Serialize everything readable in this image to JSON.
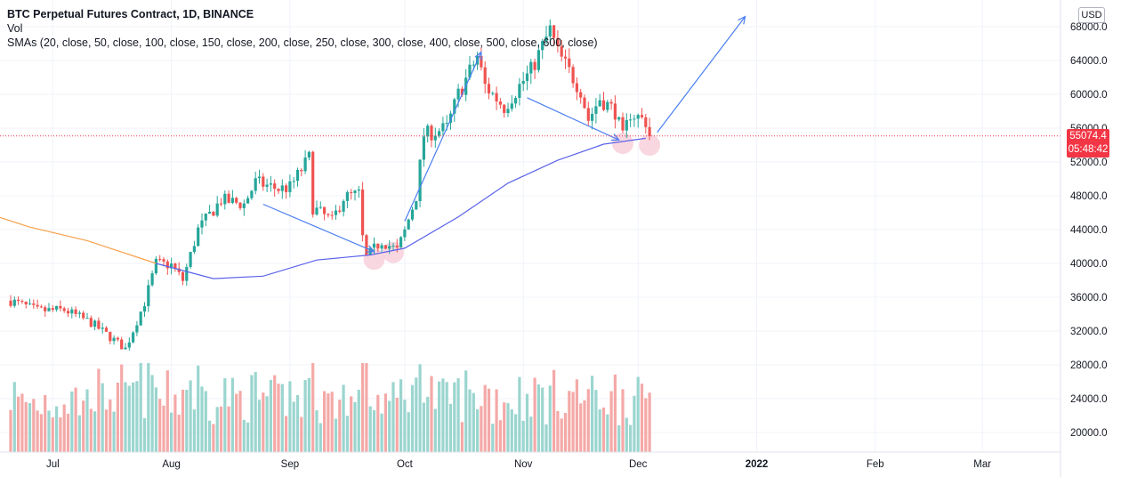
{
  "legend": {
    "title": "BTC Perpetual Futures Contract, 1D, BINANCE",
    "vol": "Vol",
    "smas": "SMAs (20, close, 50, close, 100, close, 150, close, 200, close, 250, close, 300, close, 400, close, 500, close, 600, close)"
  },
  "currency_label": "USD",
  "last_price": {
    "value": "55074.4",
    "countdown": "05:48:42",
    "price": 55074.4,
    "color": "#f23645"
  },
  "colors": {
    "up": "#26a69a",
    "down": "#ef5350",
    "vol_up": "#9bd5cf",
    "vol_down": "#f4a9a7",
    "sma_blue": "#5b63ea",
    "sma_orange": "#f7a04b",
    "arrow": "#4a7ef0",
    "grid": "#f0f3fa",
    "highlight": "#f7c9d5"
  },
  "chart_data": {
    "type": "candlestick",
    "x_axis_labels": [
      "Jul",
      "Aug",
      "Sep",
      "Oct",
      "Nov",
      "Dec",
      "2022",
      "Feb",
      "Mar"
    ],
    "y_axis_labels": [
      "68000.0",
      "64000.0",
      "60000.0",
      "56000.0",
      "52000.0",
      "48000.0",
      "44000.0",
      "40000.0",
      "36000.0",
      "32000.0",
      "28000.0",
      "24000.0",
      "20000.0"
    ],
    "ylim": [
      19000,
      69500
    ],
    "grid": true,
    "close_anchors": [
      [
        "2021-06-20",
        35600
      ],
      [
        "2021-06-27",
        34400
      ],
      [
        "2021-07-04",
        34500
      ],
      [
        "2021-07-11",
        33000
      ],
      [
        "2021-07-20",
        29900
      ],
      [
        "2021-07-25",
        35400
      ],
      [
        "2021-07-28",
        40000
      ],
      [
        "2021-08-01",
        39800
      ],
      [
        "2021-08-04",
        38000
      ],
      [
        "2021-08-08",
        44000
      ],
      [
        "2021-08-14",
        47500
      ],
      [
        "2021-08-20",
        47000
      ],
      [
        "2021-08-23",
        49600
      ],
      [
        "2021-08-29",
        48800
      ],
      [
        "2021-09-01",
        49000
      ],
      [
        "2021-09-06",
        52500
      ],
      [
        "2021-09-07",
        46600
      ],
      [
        "2021-09-12",
        45000
      ],
      [
        "2021-09-15",
        47800
      ],
      [
        "2021-09-19",
        48200
      ],
      [
        "2021-09-20",
        43000
      ],
      [
        "2021-09-21",
        40700
      ],
      [
        "2021-09-25",
        42700
      ],
      [
        "2021-09-29",
        41500
      ],
      [
        "2021-10-01",
        43800
      ],
      [
        "2021-10-04",
        48000
      ],
      [
        "2021-10-06",
        55200
      ],
      [
        "2021-10-12",
        56000
      ],
      [
        "2021-10-15",
        60000
      ],
      [
        "2021-10-20",
        64500
      ],
      [
        "2021-10-22",
        61000
      ],
      [
        "2021-10-27",
        58500
      ],
      [
        "2021-10-31",
        61000
      ],
      [
        "2021-11-03",
        62800
      ],
      [
        "2021-11-08",
        67600
      ],
      [
        "2021-11-10",
        64900
      ],
      [
        "2021-11-16",
        60500
      ],
      [
        "2021-11-18",
        57000
      ],
      [
        "2021-11-21",
        59500
      ],
      [
        "2021-11-25",
        58000
      ],
      [
        "2021-11-27",
        54800
      ],
      [
        "2021-11-29",
        57800
      ],
      [
        "2021-12-03",
        56800
      ],
      [
        "2021-12-04",
        55074
      ]
    ],
    "sma_blue": [
      [
        "2021-07-28",
        40000
      ],
      [
        "2021-08-12",
        38200
      ],
      [
        "2021-08-25",
        38500
      ],
      [
        "2021-09-08",
        40400
      ],
      [
        "2021-09-22",
        41000
      ],
      [
        "2021-10-01",
        41800
      ],
      [
        "2021-10-15",
        45500
      ],
      [
        "2021-10-28",
        49500
      ],
      [
        "2021-11-10",
        52200
      ],
      [
        "2021-11-22",
        54100
      ],
      [
        "2021-12-03",
        54800
      ]
    ],
    "sma_orange": [
      [
        "2021-05-27",
        49200
      ],
      [
        "2021-06-10",
        46500
      ],
      [
        "2021-06-25",
        44300
      ],
      [
        "2021-07-10",
        42700
      ],
      [
        "2021-07-28",
        40000
      ]
    ],
    "volume_range": [
      0,
      120000
    ],
    "annotation_arrows": [
      {
        "from": [
          "2021-08-25",
          47000
        ],
        "to": [
          "2021-09-23",
          41400
        ]
      },
      {
        "from": [
          "2021-10-01",
          45000
        ],
        "to": [
          "2021-10-21",
          65000
        ]
      },
      {
        "from": [
          "2021-11-02",
          59600
        ],
        "to": [
          "2021-11-26",
          54600
        ]
      },
      {
        "from": [
          "2021-12-06",
          55500
        ],
        "to": [
          "2021-12-29",
          69200
        ]
      }
    ],
    "highlight_circles": [
      [
        "2021-09-23",
        40500
      ],
      [
        "2021-09-28",
        41300
      ],
      [
        "2021-11-27",
        54200
      ],
      [
        "2021-12-04",
        54000
      ]
    ]
  }
}
